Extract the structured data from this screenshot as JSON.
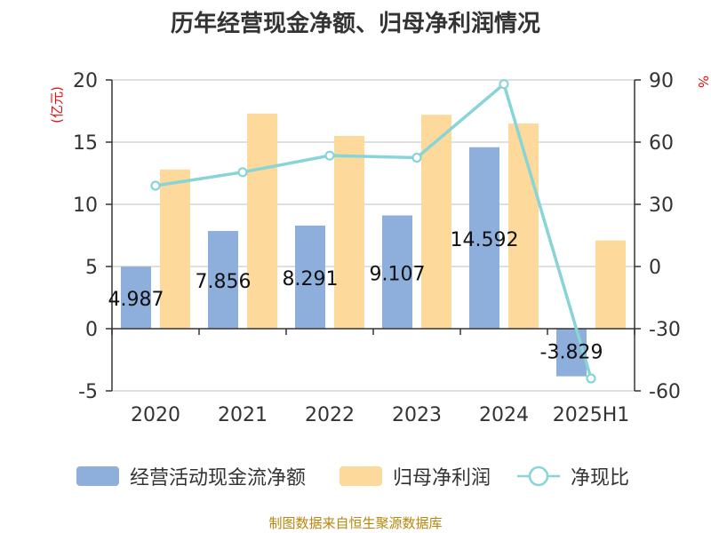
{
  "title": "历年经营现金净额、归母净利润情况",
  "source_note": "制图数据来自恒生聚源数据库",
  "chart_data": {
    "type": "bar",
    "categories": [
      "2020",
      "2021",
      "2022",
      "2023",
      "2024",
      "2025H1"
    ],
    "series": [
      {
        "name": "经营活动现金流净额",
        "type": "bar",
        "axis": "left",
        "color": "#8eaedb",
        "values": [
          4.987,
          7.856,
          8.291,
          9.107,
          14.592,
          -3.829
        ],
        "labels": [
          "4.987",
          "7.856",
          "8.291",
          "9.107",
          "14.592",
          "-3.829"
        ]
      },
      {
        "name": "归母净利润",
        "type": "bar",
        "axis": "left",
        "color": "#fdd99b",
        "values": [
          12.8,
          17.3,
          15.5,
          17.2,
          16.5,
          7.1
        ]
      },
      {
        "name": "净现比",
        "type": "line",
        "axis": "right",
        "color": "#88d4d6",
        "values": [
          39,
          45.5,
          53.5,
          52.5,
          88,
          -54
        ]
      }
    ],
    "ylabel_left": "(亿元)",
    "ylabel_right": "%",
    "ylim_left": [
      -5,
      20
    ],
    "yticks_left": [
      "-5",
      "0",
      "5",
      "10",
      "15",
      "20"
    ],
    "ylim_right": [
      -60,
      90
    ],
    "yticks_right": [
      "-60",
      "-30",
      "0",
      "30",
      "60",
      "90"
    ],
    "grid": true,
    "legend_position": "bottom"
  }
}
